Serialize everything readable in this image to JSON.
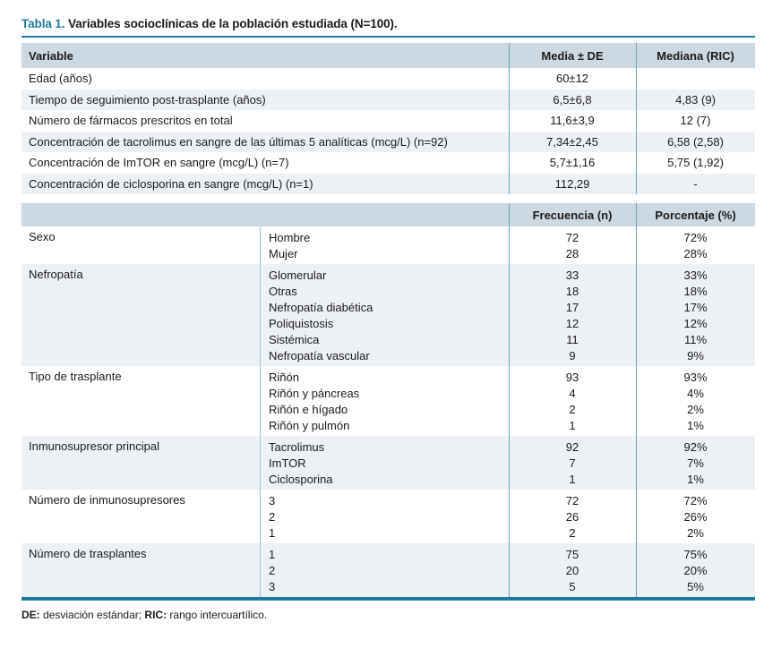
{
  "caption": {
    "label": "Tabla 1.",
    "text": " Variables socioclínicas de la población estudiada (N=100)."
  },
  "colors": {
    "accent_teal": "#1c7b9c",
    "header_bg": "#ccd8e2",
    "stripe_bg": "#edf0f5",
    "divider_teal": "#6aa3bd",
    "divider_light": "#9cc6d8",
    "text": "#1a1a1a"
  },
  "table1": {
    "headers": [
      "Variable",
      "Media ± DE",
      "Mediana (RIC)"
    ],
    "rows": [
      {
        "variable": "Edad (años)",
        "media": "60±12",
        "mediana": ""
      },
      {
        "variable": "Tiempo de seguimiento post-trasplante (años)",
        "media": "6,5±6,8",
        "mediana": "4,83 (9)"
      },
      {
        "variable": "Número de fármacos prescritos en total",
        "media": "11,6±3,9",
        "mediana": "12 (7)"
      },
      {
        "variable": "Concentración de tacrolimus en sangre de las últimas 5 analíticas (mcg/L) (n=92)",
        "media": "7,34±2,45",
        "mediana": "6,58 (2,58)"
      },
      {
        "variable": "Concentración de ImTOR en sangre (mcg/L) (n=7)",
        "media": "5,7±1,16",
        "mediana": "5,75 (1,92)"
      },
      {
        "variable": "Concentración de ciclosporina en sangre (mcg/L) (n=1)",
        "media": "112,29",
        "mediana": "-"
      }
    ]
  },
  "table2": {
    "headers": [
      "",
      "Frecuencia (n)",
      "Porcentaje (%)"
    ],
    "groups": [
      {
        "category": "Sexo",
        "items": [
          {
            "label": "Hombre",
            "n": "72",
            "pct": "72%"
          },
          {
            "label": "Mujer",
            "n": "28",
            "pct": "28%"
          }
        ]
      },
      {
        "category": "Nefropatía",
        "items": [
          {
            "label": "Glomerular",
            "n": "33",
            "pct": "33%"
          },
          {
            "label": "Otras",
            "n": "18",
            "pct": "18%"
          },
          {
            "label": "Nefropatía diabética",
            "n": "17",
            "pct": "17%"
          },
          {
            "label": "Poliquistosis",
            "n": "12",
            "pct": "12%"
          },
          {
            "label": "Sistémica",
            "n": "11",
            "pct": "11%"
          },
          {
            "label": "Nefropatía vascular",
            "n": "9",
            "pct": "9%"
          }
        ]
      },
      {
        "category": "Tipo de trasplante",
        "items": [
          {
            "label": "Riñón",
            "n": "93",
            "pct": "93%"
          },
          {
            "label": "Riñón y páncreas",
            "n": "4",
            "pct": "4%"
          },
          {
            "label": "Riñón e hígado",
            "n": "2",
            "pct": "2%"
          },
          {
            "label": "Riñón y pulmón",
            "n": "1",
            "pct": "1%"
          }
        ]
      },
      {
        "category": "Inmunosupresor principal",
        "items": [
          {
            "label": "Tacrolimus",
            "n": "92",
            "pct": "92%"
          },
          {
            "label": "ImTOR",
            "n": "7",
            "pct": "7%"
          },
          {
            "label": "Ciclosporina",
            "n": "1",
            "pct": "1%"
          }
        ]
      },
      {
        "category": "Número de inmunosupresores",
        "items": [
          {
            "label": "3",
            "n": "72",
            "pct": "72%"
          },
          {
            "label": "2",
            "n": "26",
            "pct": "26%"
          },
          {
            "label": "1",
            "n": "2",
            "pct": "2%"
          }
        ]
      },
      {
        "category": "Número de trasplantes",
        "items": [
          {
            "label": "1",
            "n": "75",
            "pct": "75%"
          },
          {
            "label": "2",
            "n": "20",
            "pct": "20%"
          },
          {
            "label": "3",
            "n": "5",
            "pct": "5%"
          }
        ]
      }
    ]
  },
  "footnote": {
    "de_label": "DE:",
    "de_text": " desviación estándar; ",
    "ric_label": "RIC:",
    "ric_text": " rango intercuartílico."
  }
}
